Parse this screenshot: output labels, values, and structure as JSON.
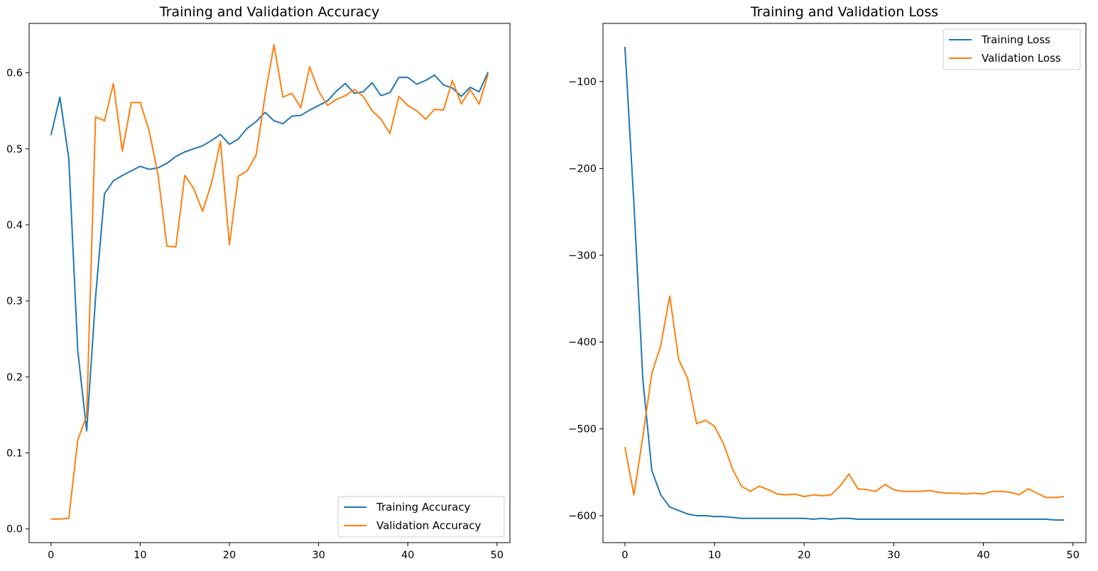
{
  "chart_data": [
    {
      "type": "line",
      "title": "Training and Validation Accuracy",
      "xlabel": "",
      "ylabel": "",
      "xlim": [
        -2.45,
        51.45
      ],
      "ylim": [
        -0.018,
        0.665
      ],
      "xticks": [
        0,
        10,
        20,
        30,
        40,
        50
      ],
      "xtick_labels": [
        "0",
        "10",
        "20",
        "30",
        "40",
        "50"
      ],
      "yticks": [
        0.0,
        0.1,
        0.2,
        0.3,
        0.4,
        0.5,
        0.6
      ],
      "ytick_labels": [
        "0.0",
        "0.1",
        "0.2",
        "0.3",
        "0.4",
        "0.5",
        "0.6"
      ],
      "grid": false,
      "legend_position": "lower right",
      "x": [
        0,
        1,
        2,
        3,
        4,
        5,
        6,
        7,
        8,
        9,
        10,
        11,
        12,
        13,
        14,
        15,
        16,
        17,
        18,
        19,
        20,
        21,
        22,
        23,
        24,
        25,
        26,
        27,
        28,
        29,
        30,
        31,
        32,
        33,
        34,
        35,
        36,
        37,
        38,
        39,
        40,
        41,
        42,
        43,
        44,
        45,
        46,
        47,
        48,
        49
      ],
      "series": [
        {
          "name": "Training Accuracy",
          "color": "#1f77b4",
          "values": [
            0.518,
            0.568,
            0.487,
            0.235,
            0.129,
            0.305,
            0.441,
            0.458,
            0.465,
            0.471,
            0.477,
            0.473,
            0.475,
            0.481,
            0.49,
            0.496,
            0.5,
            0.504,
            0.511,
            0.519,
            0.506,
            0.513,
            0.527,
            0.536,
            0.548,
            0.537,
            0.533,
            0.543,
            0.544,
            0.551,
            0.557,
            0.563,
            0.576,
            0.586,
            0.573,
            0.575,
            0.587,
            0.57,
            0.574,
            0.594,
            0.594,
            0.585,
            0.59,
            0.597,
            0.584,
            0.58,
            0.569,
            0.581,
            0.575,
            0.601
          ]
        },
        {
          "name": "Validation Accuracy",
          "color": "#ff7f0e",
          "values": [
            0.013,
            0.013,
            0.014,
            0.117,
            0.149,
            0.542,
            0.537,
            0.586,
            0.497,
            0.561,
            0.561,
            0.524,
            0.466,
            0.372,
            0.371,
            0.465,
            0.448,
            0.418,
            0.455,
            0.51,
            0.374,
            0.464,
            0.471,
            0.492,
            0.57,
            0.637,
            0.568,
            0.573,
            0.554,
            0.608,
            0.576,
            0.557,
            0.565,
            0.57,
            0.578,
            0.569,
            0.55,
            0.539,
            0.52,
            0.569,
            0.557,
            0.55,
            0.539,
            0.552,
            0.551,
            0.59,
            0.559,
            0.578,
            0.559,
            0.598
          ]
        }
      ]
    },
    {
      "type": "line",
      "title": "Training and Validation Loss",
      "xlabel": "",
      "ylabel": "",
      "xlim": [
        -2.45,
        51.45
      ],
      "ylim": [
        -631,
        -33
      ],
      "xticks": [
        0,
        10,
        20,
        30,
        40,
        50
      ],
      "xtick_labels": [
        "0",
        "10",
        "20",
        "30",
        "40",
        "50"
      ],
      "yticks": [
        -600,
        -500,
        -400,
        -300,
        -200,
        -100
      ],
      "ytick_labels": [
        "−600",
        "−500",
        "−400",
        "−300",
        "−200",
        "−100"
      ],
      "grid": false,
      "legend_position": "upper right",
      "x": [
        0,
        1,
        2,
        3,
        4,
        5,
        6,
        7,
        8,
        9,
        10,
        11,
        12,
        13,
        14,
        15,
        16,
        17,
        18,
        19,
        20,
        21,
        22,
        23,
        24,
        25,
        26,
        27,
        28,
        29,
        30,
        31,
        32,
        33,
        34,
        35,
        36,
        37,
        38,
        39,
        40,
        41,
        42,
        43,
        44,
        45,
        46,
        47,
        48,
        49
      ],
      "series": [
        {
          "name": "Training Loss",
          "color": "#1f77b4",
          "values": [
            -60,
            -240,
            -443,
            -548,
            -576,
            -590,
            -594,
            -598,
            -600,
            -600,
            -601,
            -601,
            -602,
            -603,
            -603,
            -603,
            -603,
            -603,
            -603,
            -603,
            -603,
            -604,
            -603,
            -604,
            -603,
            -603,
            -604,
            -604,
            -604,
            -604,
            -604,
            -604,
            -604,
            -604,
            -604,
            -604,
            -604,
            -604,
            -604,
            -604,
            -604,
            -604,
            -604,
            -604,
            -604,
            -604,
            -604,
            -604,
            -605,
            -605
          ]
        },
        {
          "name": "Validation Loss",
          "color": "#ff7f0e",
          "values": [
            -521,
            -576,
            -509,
            -436,
            -404,
            -347,
            -420,
            -442,
            -494,
            -490,
            -497,
            -517,
            -546,
            -566,
            -572,
            -566,
            -570,
            -575,
            -576,
            -575,
            -578,
            -576,
            -577,
            -576,
            -566,
            -552,
            -569,
            -570,
            -572,
            -564,
            -570,
            -572,
            -572,
            -572,
            -571,
            -573,
            -574,
            -574,
            -575,
            -574,
            -575,
            -572,
            -572,
            -573,
            -576,
            -569,
            -574,
            -579,
            -579,
            -578
          ]
        }
      ]
    }
  ]
}
